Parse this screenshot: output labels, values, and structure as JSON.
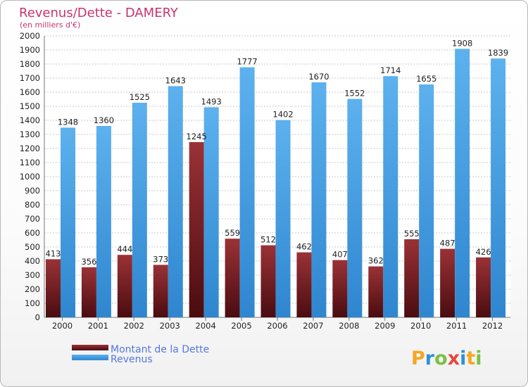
{
  "chart_data": {
    "type": "bar",
    "title": "Revenus/Dette - DAMERY",
    "subtitle": "(en milliers d'€)",
    "categories": [
      "2000",
      "2001",
      "2002",
      "2003",
      "2004",
      "2005",
      "2006",
      "2007",
      "2008",
      "2009",
      "2010",
      "2011",
      "2012"
    ],
    "series": [
      {
        "name": "Montant de la Dette",
        "color": "#7a1e22",
        "values": [
          413,
          356,
          444,
          373,
          1245,
          559,
          512,
          462,
          407,
          362,
          555,
          487,
          426
        ]
      },
      {
        "name": "Revenus",
        "color": "#4fa6e6",
        "values": [
          1348,
          1360,
          1525,
          1643,
          1493,
          1777,
          1402,
          1670,
          1552,
          1714,
          1655,
          1908,
          1839
        ]
      }
    ],
    "yticks": [
      0,
      100,
      200,
      300,
      400,
      500,
      600,
      700,
      800,
      900,
      1000,
      1100,
      1200,
      1300,
      1400,
      1500,
      1600,
      1700,
      1800,
      1900,
      2000
    ],
    "ylim": [
      0,
      2000
    ],
    "grid": true,
    "legend_position": "bottom-left"
  },
  "brand": {
    "letters": [
      "P",
      "r",
      "o",
      "x",
      "i",
      "t",
      "i"
    ],
    "colors": [
      "#f6a623",
      "#2f8fd8",
      "#7bc043",
      "#e8453c",
      "#2f8fd8",
      "#f6a623",
      "#7bc043"
    ]
  }
}
